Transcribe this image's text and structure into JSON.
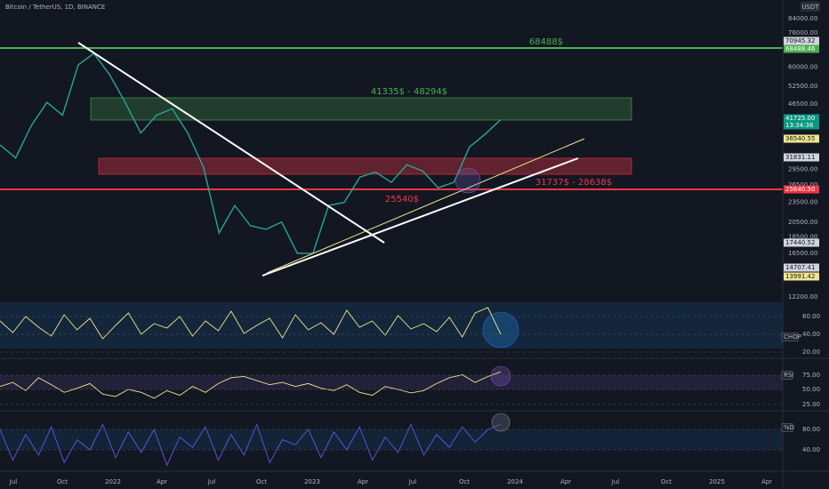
{
  "header": {
    "symbol": "Bitcoin / TetherUS, 1D, BINANCE",
    "currency": "USDT"
  },
  "price_axis": [
    "84000.00",
    "76000.00",
    "60000.00",
    "52500.00",
    "46500.00",
    "29500.00",
    "26500.00",
    "23500.00",
    "20500.00",
    "18500.00",
    "16500.00",
    "12200.00"
  ],
  "price_tags": {
    "high": "70945.32",
    "resistance": "68488.46",
    "last": "41725.00",
    "countdown": "13:34:36",
    "ma": "36540.55",
    "level_a": "31831.11",
    "support": "25640.50",
    "level_b": "17440.52",
    "low_a": "14707.41",
    "low_b": "13991.42"
  },
  "annotations": {
    "resistance": "68488$",
    "green_zone": "41335$ - 48294$",
    "support": "25540$",
    "red_zone": "31737$ - 28638$"
  },
  "price": {
    "closes": [
      35000,
      32000,
      40000,
      47000,
      43000,
      61000,
      66000,
      57000,
      47000,
      38000,
      43000,
      45000,
      38000,
      30000,
      19000,
      23000,
      20000,
      19500,
      20500,
      16500,
      16500,
      23000,
      23500,
      28000,
      29000,
      27000,
      30500,
      29200,
      26000,
      27000,
      34500,
      37700,
      41725
    ]
  },
  "indicators": [
    {
      "name": "CHOP",
      "ticks": [
        "60.00",
        "40.00",
        "20.00"
      ],
      "values": [
        55,
        42,
        60,
        48,
        38,
        62,
        45,
        58,
        35,
        50,
        64,
        40,
        52,
        47,
        60,
        38,
        55,
        44,
        66,
        41,
        50,
        58,
        36,
        62,
        45,
        53,
        40,
        67,
        48,
        55,
        39,
        61,
        46,
        52,
        43,
        59,
        37,
        64,
        70,
        40
      ]
    },
    {
      "name": "RSI",
      "ticks": [
        "75.00",
        "50.00",
        "25.00"
      ],
      "values": [
        55,
        62,
        48,
        70,
        58,
        45,
        52,
        60,
        42,
        38,
        50,
        45,
        35,
        48,
        40,
        55,
        45,
        60,
        70,
        72,
        65,
        58,
        62,
        55,
        60,
        52,
        48,
        58,
        45,
        40,
        55,
        50,
        44,
        48,
        60,
        70,
        75,
        62,
        72,
        80
      ]
    },
    {
      "name": "%D",
      "ticks": [
        "80.00",
        "40.00"
      ],
      "values": [
        80,
        20,
        70,
        30,
        85,
        15,
        60,
        40,
        90,
        25,
        75,
        35,
        80,
        10,
        65,
        45,
        85,
        20,
        70,
        30,
        90,
        15,
        60,
        50,
        80,
        25,
        75,
        40,
        85,
        20,
        65,
        35,
        90,
        30,
        70,
        45,
        85,
        55,
        80,
        90
      ]
    }
  ],
  "time_axis": [
    "Jul",
    "Oct",
    "2022",
    "Apr",
    "Jul",
    "Oct",
    "2023",
    "Apr",
    "Jul",
    "Oct",
    "2024",
    "Apr",
    "Jul",
    "Oct",
    "2025",
    "Apr"
  ]
}
